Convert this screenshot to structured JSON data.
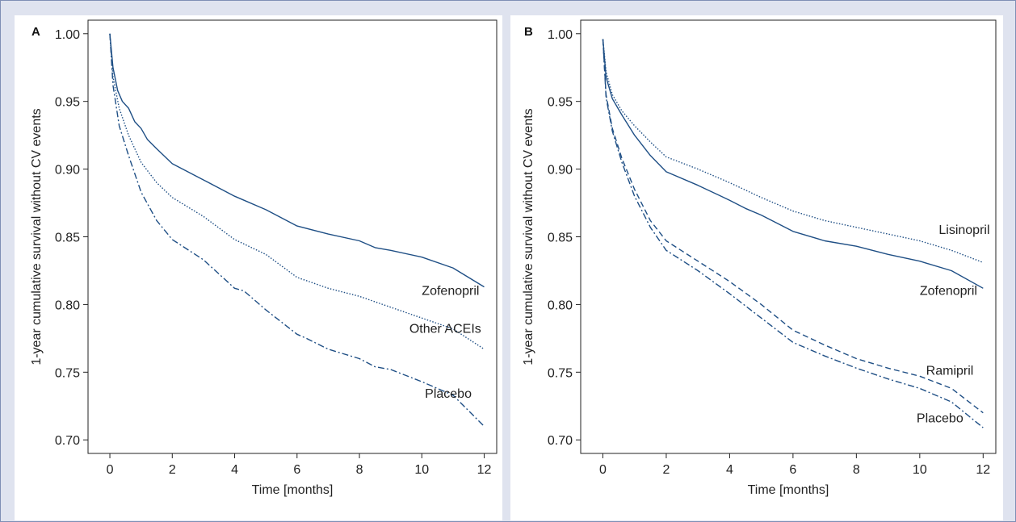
{
  "chart_data": [
    {
      "type": "line",
      "panel_label": "A",
      "xlabel": "Time [months]",
      "ylabel": "1-year cumulative survival without CV events",
      "xlim": [
        -0.7,
        12.4
      ],
      "ylim": [
        0.69,
        1.01
      ],
      "xticks": [
        0,
        2,
        4,
        6,
        8,
        10,
        12
      ],
      "yticks": [
        0.7,
        0.75,
        0.8,
        0.85,
        0.9,
        0.95,
        1.0
      ],
      "grid": false,
      "series": [
        {
          "name": "Zofenopril",
          "style": "solid",
          "points": [
            [
              0,
              1.0
            ],
            [
              0.1,
              0.975
            ],
            [
              0.25,
              0.958
            ],
            [
              0.4,
              0.95
            ],
            [
              0.6,
              0.945
            ],
            [
              0.8,
              0.935
            ],
            [
              1.0,
              0.93
            ],
            [
              1.2,
              0.922
            ],
            [
              1.5,
              0.915
            ],
            [
              2.0,
              0.904
            ],
            [
              3.0,
              0.892
            ],
            [
              4.0,
              0.88
            ],
            [
              4.3,
              0.877
            ],
            [
              5.0,
              0.87
            ],
            [
              5.5,
              0.864
            ],
            [
              6.0,
              0.858
            ],
            [
              7.0,
              0.852
            ],
            [
              8.0,
              0.847
            ],
            [
              8.5,
              0.842
            ],
            [
              9.0,
              0.84
            ],
            [
              10.0,
              0.835
            ],
            [
              11.0,
              0.827
            ],
            [
              12.0,
              0.813
            ]
          ]
        },
        {
          "name": "Other ACEIs",
          "style": "dotted",
          "points": [
            [
              0,
              1.0
            ],
            [
              0.1,
              0.968
            ],
            [
              0.3,
              0.945
            ],
            [
              0.6,
              0.925
            ],
            [
              1.0,
              0.905
            ],
            [
              1.5,
              0.89
            ],
            [
              2.0,
              0.879
            ],
            [
              3.0,
              0.865
            ],
            [
              4.0,
              0.848
            ],
            [
              5.0,
              0.837
            ],
            [
              6.0,
              0.82
            ],
            [
              7.0,
              0.812
            ],
            [
              8.0,
              0.806
            ],
            [
              9.0,
              0.798
            ],
            [
              10.0,
              0.79
            ],
            [
              11.0,
              0.782
            ],
            [
              12.0,
              0.767
            ]
          ]
        },
        {
          "name": "Placebo",
          "style": "dashdot",
          "points": [
            [
              0,
              1.0
            ],
            [
              0.1,
              0.962
            ],
            [
              0.3,
              0.932
            ],
            [
              0.6,
              0.91
            ],
            [
              1.0,
              0.883
            ],
            [
              1.5,
              0.862
            ],
            [
              2.0,
              0.848
            ],
            [
              3.0,
              0.833
            ],
            [
              4.0,
              0.812
            ],
            [
              4.3,
              0.81
            ],
            [
              5.0,
              0.796
            ],
            [
              6.0,
              0.778
            ],
            [
              6.3,
              0.775
            ],
            [
              7.0,
              0.767
            ],
            [
              8.0,
              0.76
            ],
            [
              8.5,
              0.754
            ],
            [
              9.0,
              0.752
            ],
            [
              10.0,
              0.743
            ],
            [
              11.0,
              0.733
            ],
            [
              12.0,
              0.71
            ]
          ]
        }
      ],
      "annotations": [
        {
          "text": "Zofenopril",
          "x": 10.0,
          "y": 0.807
        },
        {
          "text": "Other ACEIs",
          "x": 9.6,
          "y": 0.779
        },
        {
          "text": "Placebo",
          "x": 10.1,
          "y": 0.731
        }
      ]
    },
    {
      "type": "line",
      "panel_label": "B",
      "xlabel": "Time [months]",
      "ylabel": "1-year cumulative survival without CV events",
      "xlim": [
        -0.7,
        12.4
      ],
      "ylim": [
        0.69,
        1.01
      ],
      "xticks": [
        0,
        2,
        4,
        6,
        8,
        10,
        12
      ],
      "yticks": [
        0.7,
        0.75,
        0.8,
        0.85,
        0.9,
        0.95,
        1.0
      ],
      "grid": false,
      "series": [
        {
          "name": "Lisinopril",
          "style": "dotted",
          "points": [
            [
              0,
              0.996
            ],
            [
              0.1,
              0.972
            ],
            [
              0.3,
              0.955
            ],
            [
              0.6,
              0.943
            ],
            [
              1.0,
              0.932
            ],
            [
              1.5,
              0.92
            ],
            [
              2.0,
              0.909
            ],
            [
              3.0,
              0.9
            ],
            [
              4.0,
              0.89
            ],
            [
              5.0,
              0.879
            ],
            [
              6.0,
              0.869
            ],
            [
              7.0,
              0.862
            ],
            [
              8.0,
              0.857
            ],
            [
              9.0,
              0.852
            ],
            [
              10.0,
              0.847
            ],
            [
              11.0,
              0.84
            ],
            [
              12.0,
              0.831
            ]
          ]
        },
        {
          "name": "Zofenopril",
          "style": "solid",
          "points": [
            [
              0,
              0.996
            ],
            [
              0.1,
              0.968
            ],
            [
              0.3,
              0.952
            ],
            [
              0.6,
              0.94
            ],
            [
              1.0,
              0.925
            ],
            [
              1.5,
              0.91
            ],
            [
              2.0,
              0.898
            ],
            [
              3.0,
              0.888
            ],
            [
              4.0,
              0.877
            ],
            [
              4.5,
              0.871
            ],
            [
              5.0,
              0.866
            ],
            [
              6.0,
              0.854
            ],
            [
              7.0,
              0.847
            ],
            [
              8.0,
              0.843
            ],
            [
              9.0,
              0.837
            ],
            [
              10.0,
              0.832
            ],
            [
              11.0,
              0.825
            ],
            [
              12.0,
              0.812
            ]
          ]
        },
        {
          "name": "Ramipril",
          "style": "dashed",
          "points": [
            [
              0,
              0.996
            ],
            [
              0.1,
              0.955
            ],
            [
              0.3,
              0.93
            ],
            [
              0.6,
              0.908
            ],
            [
              1.0,
              0.885
            ],
            [
              1.5,
              0.862
            ],
            [
              2.0,
              0.847
            ],
            [
              3.0,
              0.832
            ],
            [
              4.0,
              0.817
            ],
            [
              5.0,
              0.8
            ],
            [
              6.0,
              0.781
            ],
            [
              7.0,
              0.77
            ],
            [
              8.0,
              0.76
            ],
            [
              9.0,
              0.753
            ],
            [
              10.0,
              0.747
            ],
            [
              11.0,
              0.738
            ],
            [
              12.0,
              0.72
            ]
          ]
        },
        {
          "name": "Placebo",
          "style": "dashdot",
          "points": [
            [
              0,
              0.996
            ],
            [
              0.1,
              0.953
            ],
            [
              0.3,
              0.928
            ],
            [
              0.6,
              0.905
            ],
            [
              1.0,
              0.88
            ],
            [
              1.5,
              0.857
            ],
            [
              2.0,
              0.84
            ],
            [
              3.0,
              0.825
            ],
            [
              4.0,
              0.808
            ],
            [
              5.0,
              0.79
            ],
            [
              6.0,
              0.772
            ],
            [
              7.0,
              0.762
            ],
            [
              8.0,
              0.753
            ],
            [
              9.0,
              0.745
            ],
            [
              10.0,
              0.738
            ],
            [
              11.0,
              0.728
            ],
            [
              12.0,
              0.709
            ]
          ]
        }
      ],
      "annotations": [
        {
          "text": "Lisinopril",
          "x": 10.6,
          "y": 0.852
        },
        {
          "text": "Zofenopril",
          "x": 10.0,
          "y": 0.807
        },
        {
          "text": "Ramipril",
          "x": 10.2,
          "y": 0.748
        },
        {
          "text": "Placebo",
          "x": 9.9,
          "y": 0.713
        }
      ]
    }
  ],
  "colors": {
    "line": "#1f4f85",
    "frame": "#222222",
    "background": "#dfe3ef",
    "plot_background": "#ffffff"
  }
}
